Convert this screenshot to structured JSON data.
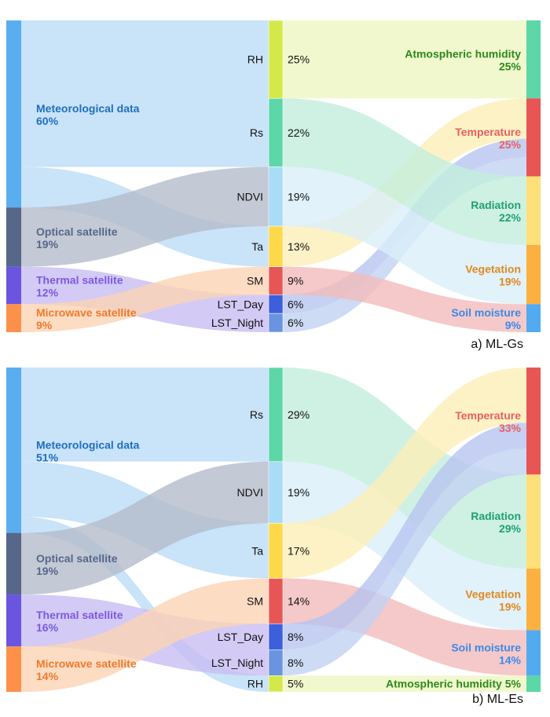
{
  "colors": {
    "Meteorological data": {
      "node": "#5aaef0",
      "link": "#bcdcf6",
      "label": "#1f6fc0"
    },
    "Optical satellite": {
      "node": "#56678a",
      "link": "#b4bccb",
      "label": "#56678a"
    },
    "Thermal satellite": {
      "node": "#6b55e0",
      "link": "#c8bdf3",
      "label": "#7a5ae0"
    },
    "Microwave satellite": {
      "node": "#fd914a",
      "link": "#fcd3b5",
      "label": "#f07a2a"
    },
    "RH": {
      "node": "#d4e84a",
      "link": "#eef6c2"
    },
    "Rs": {
      "node": "#5dd6a8",
      "link": "#c3eedd"
    },
    "NDVI": {
      "node": "#a8dcf7",
      "link": "#d9eff9"
    },
    "Ta": {
      "node": "#fdd94a",
      "link": "#fcefb8"
    },
    "SM": {
      "node": "#e85555",
      "link": "#f2bcbc"
    },
    "LST_Day": {
      "node": "#3c5fdc",
      "link": "#b6c4f0"
    },
    "LST_Night": {
      "node": "#6a93e0",
      "link": "#c2d2f2"
    },
    "Atmospheric humidity": {
      "node": "#5dd6a8",
      "label": "#2a8a1a"
    },
    "Temperature": {
      "node": "#e85555",
      "label": "#e86060"
    },
    "Radiation": {
      "node": "#fde07a",
      "label": "#20a070"
    },
    "Vegetation": {
      "node": "#fbb040",
      "label": "#e08a20"
    },
    "Soil moisture": {
      "node": "#52aaf0",
      "label": "#3a8ae8"
    }
  },
  "panels": [
    {
      "caption": "a) ML-Gs",
      "left": [
        {
          "name": "Meteorological data",
          "pct": "60%",
          "value": 60
        },
        {
          "name": "Optical satellite",
          "pct": "19%",
          "value": 19
        },
        {
          "name": "Thermal satellite",
          "pct": "12%",
          "value": 12
        },
        {
          "name": "Microwave satellite",
          "pct": "9%",
          "value": 9
        }
      ],
      "middle": [
        {
          "name": "RH",
          "pct": "25%",
          "value": 25
        },
        {
          "name": "Rs",
          "pct": "22%",
          "value": 22
        },
        {
          "name": "NDVI",
          "pct": "19%",
          "value": 19
        },
        {
          "name": "Ta",
          "pct": "13%",
          "value": 13
        },
        {
          "name": "SM",
          "pct": "9%",
          "value": 9
        },
        {
          "name": "LST_Day",
          "pct": "6%",
          "value": 6
        },
        {
          "name": "LST_Night",
          "pct": "6%",
          "value": 6
        }
      ],
      "right": [
        {
          "name": "Atmospheric humidity",
          "pct": "25%",
          "value": 25
        },
        {
          "name": "Temperature",
          "pct": "25%",
          "value": 25
        },
        {
          "name": "Radiation",
          "pct": "22%",
          "value": 22
        },
        {
          "name": "Vegetation",
          "pct": "19%",
          "value": 19
        },
        {
          "name": "Soil moisture",
          "pct": "9%",
          "value": 9
        }
      ],
      "links": [
        [
          "Meteorological data",
          "RH",
          25
        ],
        [
          "Meteorological data",
          "Rs",
          22
        ],
        [
          "Meteorological data",
          "Ta",
          13
        ],
        [
          "Optical satellite",
          "NDVI",
          19
        ],
        [
          "Thermal satellite",
          "LST_Day",
          6
        ],
        [
          "Thermal satellite",
          "LST_Night",
          6
        ],
        [
          "Microwave satellite",
          "SM",
          9
        ],
        [
          "RH",
          "Atmospheric humidity",
          25
        ],
        [
          "Ta",
          "Temperature",
          13
        ],
        [
          "LST_Day",
          "Temperature",
          6
        ],
        [
          "LST_Night",
          "Temperature",
          6
        ],
        [
          "Rs",
          "Radiation",
          22
        ],
        [
          "NDVI",
          "Vegetation",
          19
        ],
        [
          "SM",
          "Soil moisture",
          9
        ]
      ]
    },
    {
      "caption": "b) ML-Es",
      "left": [
        {
          "name": "Meteorological data",
          "pct": "51%",
          "value": 51
        },
        {
          "name": "Optical satellite",
          "pct": "19%",
          "value": 19
        },
        {
          "name": "Thermal satellite",
          "pct": "16%",
          "value": 16
        },
        {
          "name": "Microwave satellite",
          "pct": "14%",
          "value": 14
        }
      ],
      "middle": [
        {
          "name": "Rs",
          "pct": "29%",
          "value": 29
        },
        {
          "name": "NDVI",
          "pct": "19%",
          "value": 19
        },
        {
          "name": "Ta",
          "pct": "17%",
          "value": 17
        },
        {
          "name": "SM",
          "pct": "14%",
          "value": 14
        },
        {
          "name": "LST_Day",
          "pct": "8%",
          "value": 8
        },
        {
          "name": "LST_Night",
          "pct": "8%",
          "value": 8
        },
        {
          "name": "RH",
          "pct": "5%",
          "value": 5
        }
      ],
      "right": [
        {
          "name": "Temperature",
          "pct": "33%",
          "value": 33
        },
        {
          "name": "Radiation",
          "pct": "29%",
          "value": 29
        },
        {
          "name": "Vegetation",
          "pct": "19%",
          "value": 19
        },
        {
          "name": "Soil moisture",
          "pct": "14%",
          "value": 14
        },
        {
          "name": "Atmospheric humidity",
          "pct": "5%",
          "value": 5,
          "inline": true
        }
      ],
      "links": [
        [
          "Meteorological data",
          "Rs",
          29
        ],
        [
          "Meteorological data",
          "Ta",
          17
        ],
        [
          "Meteorological data",
          "RH",
          5
        ],
        [
          "Optical satellite",
          "NDVI",
          19
        ],
        [
          "Thermal satellite",
          "LST_Day",
          8
        ],
        [
          "Thermal satellite",
          "LST_Night",
          8
        ],
        [
          "Microwave satellite",
          "SM",
          14
        ],
        [
          "Rs",
          "Radiation",
          29
        ],
        [
          "NDVI",
          "Vegetation",
          19
        ],
        [
          "Ta",
          "Temperature",
          17
        ],
        [
          "SM",
          "Soil moisture",
          14
        ],
        [
          "LST_Day",
          "Temperature",
          8
        ],
        [
          "LST_Night",
          "Temperature",
          8
        ],
        [
          "RH",
          "Atmospheric humidity",
          5
        ]
      ]
    }
  ]
}
